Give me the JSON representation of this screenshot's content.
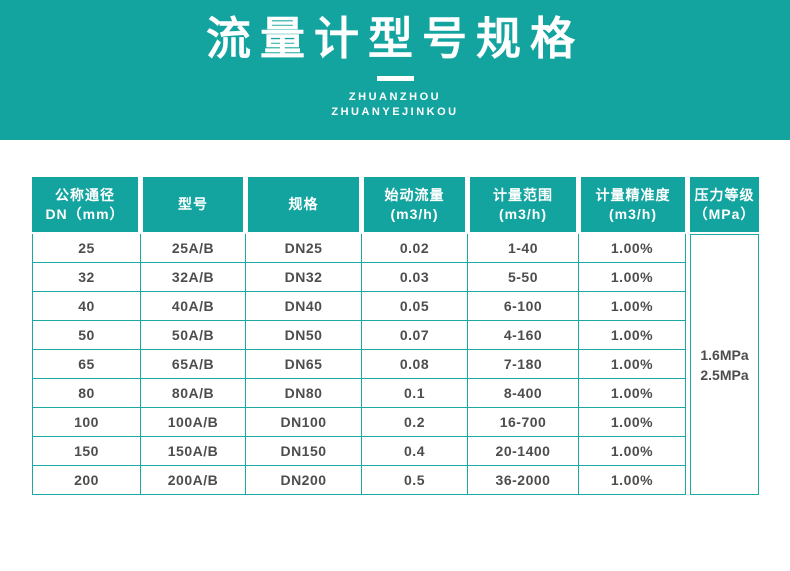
{
  "banner": {
    "title": "流量计型号规格",
    "subtitle_line1": "ZHUANZHOU",
    "subtitle_line2": "ZHUANYEJINKOU"
  },
  "colors": {
    "teal": "#14a4a0",
    "table_border_teal": "#1ba8a4",
    "body_text": "#4d4d4d"
  },
  "table": {
    "headers": [
      {
        "line1": "公称通径",
        "line2": "DN（mm）"
      },
      {
        "line1": "型号"
      },
      {
        "line1": "规格"
      },
      {
        "line1": "始动流量",
        "line2": "(m3/h)"
      },
      {
        "line1": "计量范围",
        "line2": "(m3/h)"
      },
      {
        "line1": "计量精准度",
        "line2": "(m3/h)"
      },
      {
        "line1": "压力等级",
        "line2": "（MPa）"
      }
    ],
    "rows": [
      [
        "25",
        "25A/B",
        "DN25",
        "0.02",
        "1-40",
        "1.00%"
      ],
      [
        "32",
        "32A/B",
        "DN32",
        "0.03",
        "5-50",
        "1.00%"
      ],
      [
        "40",
        "40A/B",
        "DN40",
        "0.05",
        "6-100",
        "1.00%"
      ],
      [
        "50",
        "50A/B",
        "DN50",
        "0.07",
        "4-160",
        "1.00%"
      ],
      [
        "65",
        "65A/B",
        "DN65",
        "0.08",
        "7-180",
        "1.00%"
      ],
      [
        "80",
        "80A/B",
        "DN80",
        "0.1",
        "8-400",
        "1.00%"
      ],
      [
        "100",
        "100A/B",
        "DN100",
        "0.2",
        "16-700",
        "1.00%"
      ],
      [
        "150",
        "150A/B",
        "DN150",
        "0.4",
        "20-1400",
        "1.00%"
      ],
      [
        "200",
        "200A/B",
        "DN200",
        "0.5",
        "36-2000",
        "1.00%"
      ]
    ],
    "pressure": {
      "line1": "1.6MPa",
      "line2": "2.5MPa"
    }
  }
}
